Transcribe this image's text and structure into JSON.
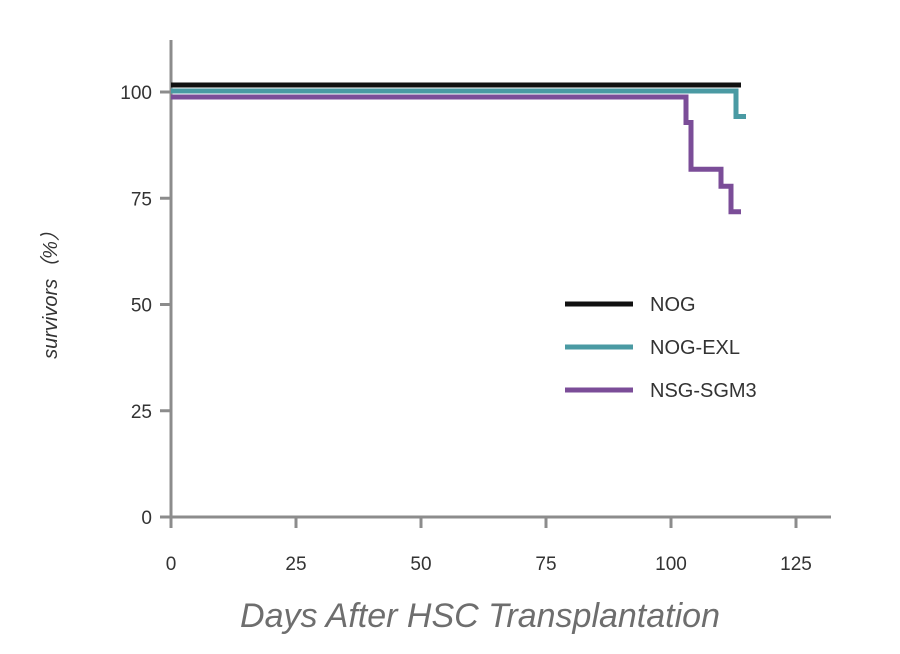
{
  "chart_data": {
    "type": "line",
    "step": true,
    "title": "",
    "xlabel": "Days After HSC Transplantation",
    "ylabel": "survivors（%）",
    "xlim": [
      0,
      132
    ],
    "ylim": [
      0,
      112
    ],
    "xticks": [
      0,
      25,
      50,
      75,
      100,
      125
    ],
    "yticks": [
      0,
      25,
      50,
      75,
      100
    ],
    "grid": false,
    "legend_position": "center-right",
    "series": [
      {
        "name": "NOG",
        "color": "#111111",
        "x": [
          0,
          114
        ],
        "y": [
          100,
          100
        ]
      },
      {
        "name": "NOG-EXL",
        "color": "#4a9aa3",
        "x": [
          0,
          113,
          113,
          115
        ],
        "y": [
          100,
          100,
          94,
          94
        ]
      },
      {
        "name": "NSG-SGM3",
        "color": "#7b4d98",
        "x": [
          0,
          103,
          103,
          104,
          104,
          110,
          110,
          112,
          112,
          114
        ],
        "y": [
          100,
          100,
          94,
          94,
          83,
          83,
          79,
          79,
          73,
          73
        ]
      }
    ]
  }
}
